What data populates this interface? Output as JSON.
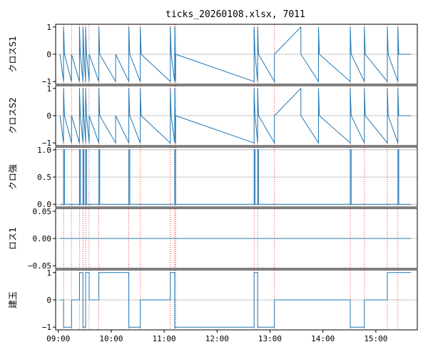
{
  "chart_data": {
    "type": "line",
    "title": "ticks_20260108.xlsx, 7011",
    "series_color": "#1f77b4",
    "vline_color": "#ff0000",
    "grid_color": "#b0b0b0",
    "x_ticks": [
      "09:00",
      "10:00",
      "11:00",
      "12:00",
      "13:00",
      "14:00",
      "15:00"
    ],
    "xlim": [
      "08:57",
      "15:47"
    ],
    "vlines": [
      "09:06",
      "09:15",
      "09:24",
      "09:28",
      "09:31",
      "09:35",
      "09:46",
      "10:20",
      "10:33",
      "11:07",
      "11:12",
      "11:13",
      "12:42",
      "12:46",
      "13:05",
      "14:31",
      "14:47",
      "15:13",
      "15:25"
    ],
    "panels": [
      {
        "ylabel": "クロスS1",
        "ylim": [
          -1.1,
          1.1
        ],
        "yticks": [
          {
            "v": -1,
            "label": "−1"
          },
          {
            "v": 0,
            "label": "0"
          },
          {
            "v": 1,
            "label": "1"
          }
        ],
        "grid": [
          0
        ],
        "data": [
          [
            "09:02",
            0
          ],
          [
            "09:06",
            -1
          ],
          [
            "09:06",
            1
          ],
          [
            "09:07",
            0
          ],
          [
            "09:15",
            -1
          ],
          [
            "09:15",
            0
          ],
          [
            "09:24",
            -1
          ],
          [
            "09:24",
            1
          ],
          [
            "09:25",
            0
          ],
          [
            "09:28",
            -1
          ],
          [
            "09:28",
            1
          ],
          [
            "09:29",
            0
          ],
          [
            "09:31",
            -1
          ],
          [
            "09:31",
            1
          ],
          [
            "09:32",
            0
          ],
          [
            "09:35",
            -1
          ],
          [
            "09:35",
            0
          ],
          [
            "09:46",
            -1
          ],
          [
            "09:46",
            1
          ],
          [
            "09:47",
            0
          ],
          [
            "10:05",
            -1
          ],
          [
            "10:05",
            0
          ],
          [
            "10:20",
            -1
          ],
          [
            "10:20",
            1
          ],
          [
            "10:21",
            0
          ],
          [
            "10:33",
            -1
          ],
          [
            "10:33",
            1
          ],
          [
            "10:34",
            0
          ],
          [
            "11:07",
            -1
          ],
          [
            "11:07",
            1
          ],
          [
            "11:08",
            0
          ],
          [
            "11:12",
            -1
          ],
          [
            "11:12",
            1
          ],
          [
            "11:13",
            -1
          ],
          [
            "11:13",
            0
          ],
          [
            "12:42",
            -1
          ],
          [
            "12:42",
            1
          ],
          [
            "12:43",
            0
          ],
          [
            "12:46",
            -1
          ],
          [
            "12:46",
            1
          ],
          [
            "12:47",
            0
          ],
          [
            "13:05",
            -1
          ],
          [
            "13:05",
            0
          ],
          [
            "13:35",
            1
          ],
          [
            "13:35",
            0
          ],
          [
            "13:55",
            -1
          ],
          [
            "13:55",
            1
          ],
          [
            "13:56",
            0
          ],
          [
            "14:31",
            -1
          ],
          [
            "14:31",
            1
          ],
          [
            "14:32",
            0
          ],
          [
            "14:47",
            -1
          ],
          [
            "14:47",
            1
          ],
          [
            "14:48",
            0
          ],
          [
            "15:13",
            -1
          ],
          [
            "15:13",
            1
          ],
          [
            "15:14",
            0
          ],
          [
            "15:25",
            -1
          ],
          [
            "15:25",
            1
          ],
          [
            "15:26",
            0
          ],
          [
            "15:40",
            0
          ]
        ]
      },
      {
        "ylabel": "クロスS2",
        "ylim": [
          -1.1,
          1.1
        ],
        "yticks": [
          {
            "v": -1,
            "label": "−1"
          },
          {
            "v": 0,
            "label": "0"
          },
          {
            "v": 1,
            "label": "1"
          }
        ],
        "grid": [
          0
        ],
        "data": [
          [
            "09:02",
            0
          ],
          [
            "09:06",
            -1
          ],
          [
            "09:06",
            1
          ],
          [
            "09:07",
            0
          ],
          [
            "09:15",
            -1
          ],
          [
            "09:15",
            0
          ],
          [
            "09:24",
            -1
          ],
          [
            "09:24",
            1
          ],
          [
            "09:25",
            0
          ],
          [
            "09:28",
            -1
          ],
          [
            "09:28",
            1
          ],
          [
            "09:29",
            0
          ],
          [
            "09:31",
            -1
          ],
          [
            "09:31",
            1
          ],
          [
            "09:32",
            0
          ],
          [
            "09:35",
            -1
          ],
          [
            "09:35",
            0
          ],
          [
            "09:46",
            -1
          ],
          [
            "09:46",
            1
          ],
          [
            "09:47",
            0
          ],
          [
            "10:05",
            -1
          ],
          [
            "10:05",
            0
          ],
          [
            "10:20",
            -1
          ],
          [
            "10:20",
            1
          ],
          [
            "10:21",
            0
          ],
          [
            "10:33",
            -1
          ],
          [
            "10:33",
            1
          ],
          [
            "10:34",
            0
          ],
          [
            "11:07",
            -1
          ],
          [
            "11:07",
            1
          ],
          [
            "11:08",
            0
          ],
          [
            "11:12",
            -1
          ],
          [
            "11:12",
            1
          ],
          [
            "11:13",
            -1
          ],
          [
            "11:13",
            0
          ],
          [
            "12:42",
            -1
          ],
          [
            "12:42",
            1
          ],
          [
            "12:43",
            0
          ],
          [
            "12:46",
            -1
          ],
          [
            "12:46",
            1
          ],
          [
            "12:47",
            0
          ],
          [
            "13:05",
            -1
          ],
          [
            "13:05",
            0
          ],
          [
            "13:35",
            1
          ],
          [
            "13:35",
            0
          ],
          [
            "13:55",
            -1
          ],
          [
            "13:55",
            1
          ],
          [
            "13:56",
            0
          ],
          [
            "14:31",
            -1
          ],
          [
            "14:31",
            1
          ],
          [
            "14:32",
            0
          ],
          [
            "14:47",
            -1
          ],
          [
            "14:47",
            1
          ],
          [
            "14:48",
            0
          ],
          [
            "15:13",
            -1
          ],
          [
            "15:13",
            1
          ],
          [
            "15:14",
            0
          ],
          [
            "15:25",
            -1
          ],
          [
            "15:25",
            1
          ],
          [
            "15:26",
            0
          ],
          [
            "15:40",
            0
          ]
        ]
      },
      {
        "ylabel": "クロ強",
        "ylim": [
          -0.05,
          1.05
        ],
        "yticks": [
          {
            "v": 0,
            "label": "0.0"
          },
          {
            "v": 0.5,
            "label": "0.5"
          },
          {
            "v": 1,
            "label": "1.0"
          }
        ],
        "grid": [
          0,
          0.5,
          1
        ],
        "data": [
          [
            "09:02",
            0
          ],
          [
            "09:06",
            0
          ],
          [
            "09:06",
            1
          ],
          [
            "09:07",
            1
          ],
          [
            "09:07",
            0
          ],
          [
            "09:24",
            0
          ],
          [
            "09:24",
            1
          ],
          [
            "09:25",
            1
          ],
          [
            "09:25",
            0
          ],
          [
            "09:28",
            0
          ],
          [
            "09:28",
            1
          ],
          [
            "09:29",
            1
          ],
          [
            "09:29",
            0
          ],
          [
            "09:31",
            0
          ],
          [
            "09:31",
            1
          ],
          [
            "09:32",
            1
          ],
          [
            "09:32",
            0
          ],
          [
            "09:46",
            0
          ],
          [
            "09:46",
            1
          ],
          [
            "09:47",
            1
          ],
          [
            "09:47",
            0
          ],
          [
            "10:20",
            0
          ],
          [
            "10:20",
            1
          ],
          [
            "10:21",
            1
          ],
          [
            "10:21",
            0
          ],
          [
            "11:12",
            0
          ],
          [
            "11:12",
            1
          ],
          [
            "11:13",
            1
          ],
          [
            "11:13",
            0
          ],
          [
            "12:42",
            0
          ],
          [
            "12:42",
            1
          ],
          [
            "12:43",
            1
          ],
          [
            "12:43",
            0
          ],
          [
            "12:46",
            0
          ],
          [
            "12:46",
            1
          ],
          [
            "12:47",
            1
          ],
          [
            "12:47",
            0
          ],
          [
            "14:31",
            0
          ],
          [
            "14:31",
            1
          ],
          [
            "14:32",
            1
          ],
          [
            "14:32",
            0
          ],
          [
            "15:25",
            0
          ],
          [
            "15:25",
            1
          ],
          [
            "15:26",
            1
          ],
          [
            "15:26",
            0
          ],
          [
            "15:40",
            0
          ]
        ]
      },
      {
        "ylabel": "ロス1",
        "ylim": [
          -0.055,
          0.055
        ],
        "yticks": [
          {
            "v": -0.05,
            "label": "−0.05"
          },
          {
            "v": 0,
            "label": "0.00"
          },
          {
            "v": 0.05,
            "label": "0.05"
          }
        ],
        "grid": [
          0
        ],
        "data": [
          [
            "09:02",
            0
          ],
          [
            "15:40",
            0
          ]
        ]
      },
      {
        "ylabel": "建玉",
        "ylim": [
          -1.1,
          1.1
        ],
        "yticks": [
          {
            "v": -1,
            "label": "−1"
          },
          {
            "v": 0,
            "label": "0"
          },
          {
            "v": 1,
            "label": "1"
          }
        ],
        "grid": [
          0
        ],
        "data": [
          [
            "09:02",
            0
          ],
          [
            "09:06",
            0
          ],
          [
            "09:06",
            -1
          ],
          [
            "09:15",
            -1
          ],
          [
            "09:15",
            0
          ],
          [
            "09:24",
            0
          ],
          [
            "09:24",
            1
          ],
          [
            "09:28",
            1
          ],
          [
            "09:28",
            -1
          ],
          [
            "09:31",
            -1
          ],
          [
            "09:31",
            1
          ],
          [
            "09:35",
            1
          ],
          [
            "09:35",
            0
          ],
          [
            "09:46",
            0
          ],
          [
            "09:46",
            1
          ],
          [
            "10:20",
            1
          ],
          [
            "10:20",
            -1
          ],
          [
            "10:33",
            -1
          ],
          [
            "10:33",
            0
          ],
          [
            "11:07",
            0
          ],
          [
            "11:07",
            1
          ],
          [
            "11:12",
            1
          ],
          [
            "11:12",
            -1
          ],
          [
            "12:42",
            -1
          ],
          [
            "12:42",
            1
          ],
          [
            "12:46",
            1
          ],
          [
            "12:46",
            -1
          ],
          [
            "13:05",
            -1
          ],
          [
            "13:05",
            0
          ],
          [
            "14:31",
            0
          ],
          [
            "14:31",
            -1
          ],
          [
            "14:47",
            -1
          ],
          [
            "14:47",
            0
          ],
          [
            "15:13",
            0
          ],
          [
            "15:13",
            1
          ],
          [
            "15:25",
            1
          ],
          [
            "15:40",
            1
          ]
        ]
      }
    ]
  }
}
